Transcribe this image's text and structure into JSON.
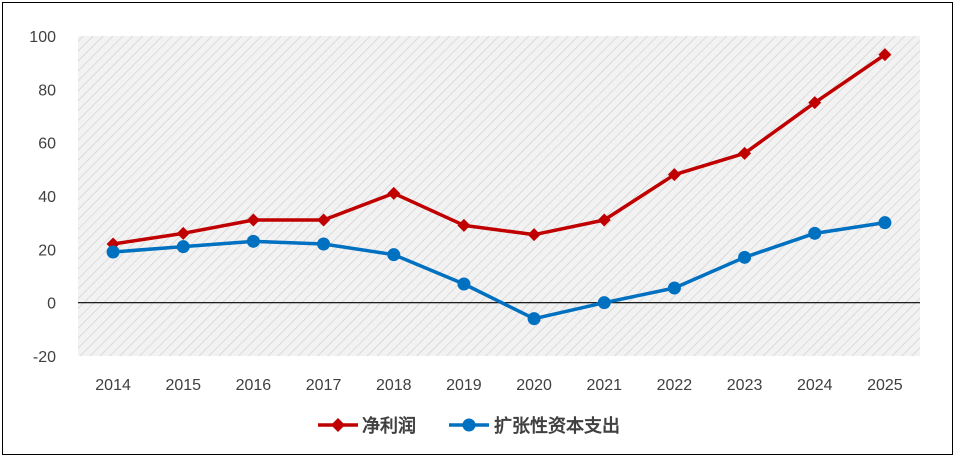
{
  "chart_data": {
    "type": "line",
    "categories": [
      "2014",
      "2015",
      "2016",
      "2017",
      "2018",
      "2019",
      "2020",
      "2021",
      "2022",
      "2023",
      "2024",
      "2025"
    ],
    "series": [
      {
        "name": "净利润",
        "color": "#C00000",
        "marker": "diamond",
        "values": [
          22,
          26,
          31,
          31,
          41,
          29,
          25.5,
          31,
          48,
          56,
          75,
          93
        ]
      },
      {
        "name": "扩张性资本支出",
        "color": "#0070C0",
        "marker": "circle",
        "values": [
          19,
          21,
          23,
          22,
          18,
          7,
          -6,
          0,
          5.5,
          17,
          26,
          30
        ]
      }
    ],
    "yticks": [
      "100",
      "80",
      "60",
      "40",
      "20",
      "0",
      "-20"
    ],
    "ylim": [
      -20,
      100
    ],
    "legend_position": "bottom-center",
    "grid": "hatched-background"
  }
}
